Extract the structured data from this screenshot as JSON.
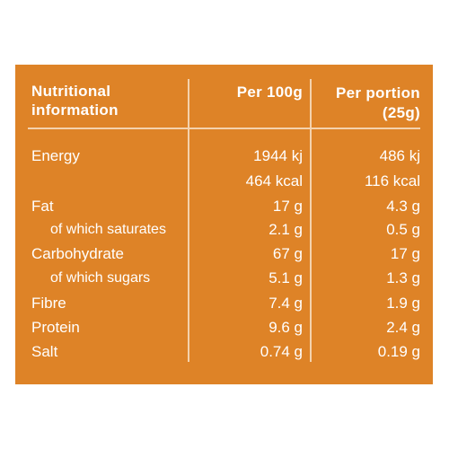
{
  "header": {
    "line1": "Nutritional",
    "line2": "information",
    "per100": "Per 100g",
    "perPortion": "Per portion",
    "portionSize": "(25g)"
  },
  "energy": {
    "label": "Energy",
    "kj100": "1944 kj",
    "kjPortion": "486 kj",
    "kcal100": "464 kcal",
    "kcalPortion": "116 kcal"
  },
  "rows": [
    {
      "label": "Fat",
      "per100": "17 g",
      "perPortion": "4.3 g"
    },
    {
      "label": "of which saturates",
      "per100": "2.1 g",
      "perPortion": "0.5 g"
    },
    {
      "label": "Carbohydrate",
      "per100": "67 g",
      "perPortion": "17 g"
    },
    {
      "label": "of which sugars",
      "per100": "5.1 g",
      "perPortion": "1.3 g"
    },
    {
      "label": "Fibre",
      "per100": "7.4 g",
      "perPortion": "1.9 g"
    },
    {
      "label": "Protein",
      "per100": "9.6 g",
      "perPortion": "2.4 g"
    },
    {
      "label": "Salt",
      "per100": "0.74 g",
      "perPortion": "0.19 g"
    }
  ],
  "colors": {
    "panel": "#de8327",
    "text": "#ffffff",
    "rule": "#f4d2ad"
  }
}
